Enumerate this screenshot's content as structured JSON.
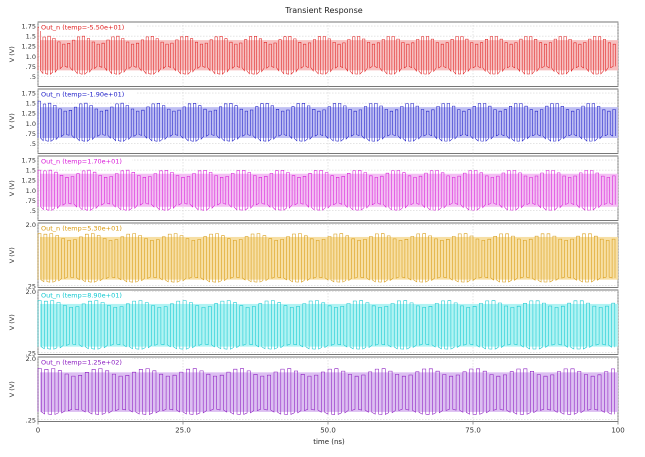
{
  "chart_data": {
    "type": "line",
    "title": "Transient Response",
    "xlabel": "time (ns)",
    "ylabel": "V (V)",
    "xlim": [
      0,
      100
    ],
    "x_ticks": [
      {
        "value": 0,
        "label": "0"
      },
      {
        "value": 25,
        "label": "25.0"
      },
      {
        "value": 50,
        "label": "50.0"
      },
      {
        "value": 75,
        "label": "75.0"
      },
      {
        "value": 100,
        "label": "100"
      }
    ],
    "grid": true,
    "legend": "top-left of each panel",
    "panels": [
      {
        "series_name": "Out_n (temp=-5.50e+01)",
        "color": "#e02020",
        "fill": "#f6b8b8",
        "ylim": [
          0.25,
          1.85
        ],
        "y_ticks": [
          {
            "value": 1.75,
            "label": "1.75"
          },
          {
            "value": 1.5,
            "label": "1.5"
          },
          {
            "value": 1.25,
            "label": "1.25"
          },
          {
            "value": 1.0,
            "label": "1.0"
          },
          {
            "value": 0.75,
            "label": ".75"
          },
          {
            "value": 0.5,
            "label": ".5"
          }
        ],
        "wave": {
          "high_min": 1.3,
          "high_max": 1.5,
          "low_min": 0.55,
          "low_max": 0.75,
          "initial_peak": 1.72,
          "cycles": 118
        }
      },
      {
        "series_name": "Out_n (temp=-1.90e+01)",
        "color": "#1c1cc8",
        "fill": "#b8b8f2",
        "ylim": [
          0.25,
          1.85
        ],
        "y_ticks": [
          {
            "value": 1.75,
            "label": "1.75"
          },
          {
            "value": 1.5,
            "label": "1.5"
          },
          {
            "value": 1.25,
            "label": "1.25"
          },
          {
            "value": 1.0,
            "label": "1.0"
          },
          {
            "value": 0.75,
            "label": ".75"
          },
          {
            "value": 0.5,
            "label": ".5"
          }
        ],
        "wave": {
          "high_min": 1.3,
          "high_max": 1.5,
          "low_min": 0.55,
          "low_max": 0.72,
          "initial_peak": 1.55,
          "cycles": 112
        }
      },
      {
        "series_name": "Out_n (temp=1.70e+01)",
        "color": "#d81ad8",
        "fill": "#f2b8f2",
        "ylim": [
          0.25,
          1.85
        ],
        "y_ticks": [
          {
            "value": 1.75,
            "label": "1.75"
          },
          {
            "value": 1.5,
            "label": "1.5"
          },
          {
            "value": 1.25,
            "label": "1.25"
          },
          {
            "value": 1.0,
            "label": "1.0"
          },
          {
            "value": 0.75,
            "label": ".75"
          },
          {
            "value": 0.5,
            "label": ".5"
          }
        ],
        "wave": {
          "high_min": 1.32,
          "high_max": 1.5,
          "low_min": 0.5,
          "low_max": 0.68,
          "initial_peak": 1.5,
          "cycles": 105
        }
      },
      {
        "series_name": "Out_n (temp=5.30e+01)",
        "color": "#d89a10",
        "fill": "#f6dc9a",
        "ylim": [
          0.2,
          2.05
        ],
        "y_ticks": [
          {
            "value": 2.0,
            "label": "2.0"
          },
          {
            "value": 0.25,
            "label": ".25"
          }
        ],
        "wave": {
          "high_min": 1.55,
          "high_max": 1.75,
          "low_min": 0.35,
          "low_max": 0.5,
          "initial_peak": 1.75,
          "cycles": 98
        }
      },
      {
        "series_name": "Out_n (temp=8.90e+01)",
        "color": "#10c8d0",
        "fill": "#a8f2f2",
        "ylim": [
          0.2,
          2.05
        ],
        "y_ticks": [
          {
            "value": 2.0,
            "label": "2.0"
          },
          {
            "value": 0.25,
            "label": ".25"
          }
        ],
        "wave": {
          "high_min": 1.55,
          "high_max": 1.75,
          "low_min": 0.35,
          "low_max": 0.5,
          "initial_peak": 1.75,
          "cycles": 92
        }
      },
      {
        "series_name": "Out_n (temp=1.25e+02)",
        "color": "#8a1ac0",
        "fill": "#d8b8f0",
        "ylim": [
          0.2,
          2.05
        ],
        "y_ticks": [
          {
            "value": 2.0,
            "label": "2.0"
          },
          {
            "value": 0.25,
            "label": ".25"
          }
        ],
        "wave": {
          "high_min": 1.5,
          "high_max": 1.72,
          "low_min": 0.4,
          "low_max": 0.55,
          "initial_peak": 1.72,
          "cycles": 86
        }
      }
    ]
  }
}
